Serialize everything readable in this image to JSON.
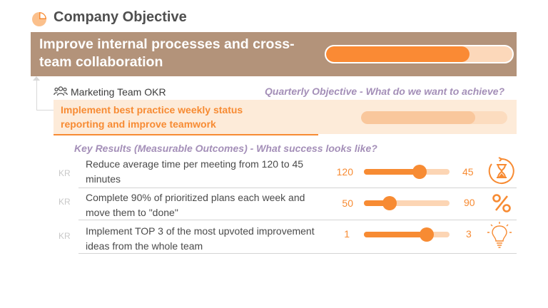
{
  "header": {
    "title": "Company Objective",
    "icon": "pie-chart-icon"
  },
  "objective": {
    "text": "Improve internal processes and cross-team collaboration",
    "progress": 0.77
  },
  "team": {
    "icon": "team-icon",
    "label": "Marketing Team OKR",
    "quarterly_caption": "Quarterly Objective - What do we want to achieve?",
    "objective_text": "Implement best practice weekly status reporting and improve teamwork",
    "progress": 0.78
  },
  "key_results": {
    "caption": "Key Results (Measurable Outcomes) - What success looks like?",
    "items": [
      {
        "tag": "KR",
        "text": "Reduce average time per meeting from 120 to 45 minutes",
        "start": "120",
        "target": "45",
        "progress": 0.65,
        "icon": "hourglass-icon"
      },
      {
        "tag": "KR",
        "text": "Complete 90% of prioritized plans each week and move them to \"done\"",
        "start": "50",
        "target": "90",
        "progress": 0.3,
        "icon": "percent-icon"
      },
      {
        "tag": "KR",
        "text": "Implement TOP 3 of the most upvoted improvement ideas from the whole team",
        "start": "1",
        "target": "3",
        "progress": 0.73,
        "icon": "lightbulb-icon"
      }
    ]
  },
  "colors": {
    "accent": "#f78b33",
    "banner": "#b3937a",
    "caption": "#a48fb8"
  }
}
